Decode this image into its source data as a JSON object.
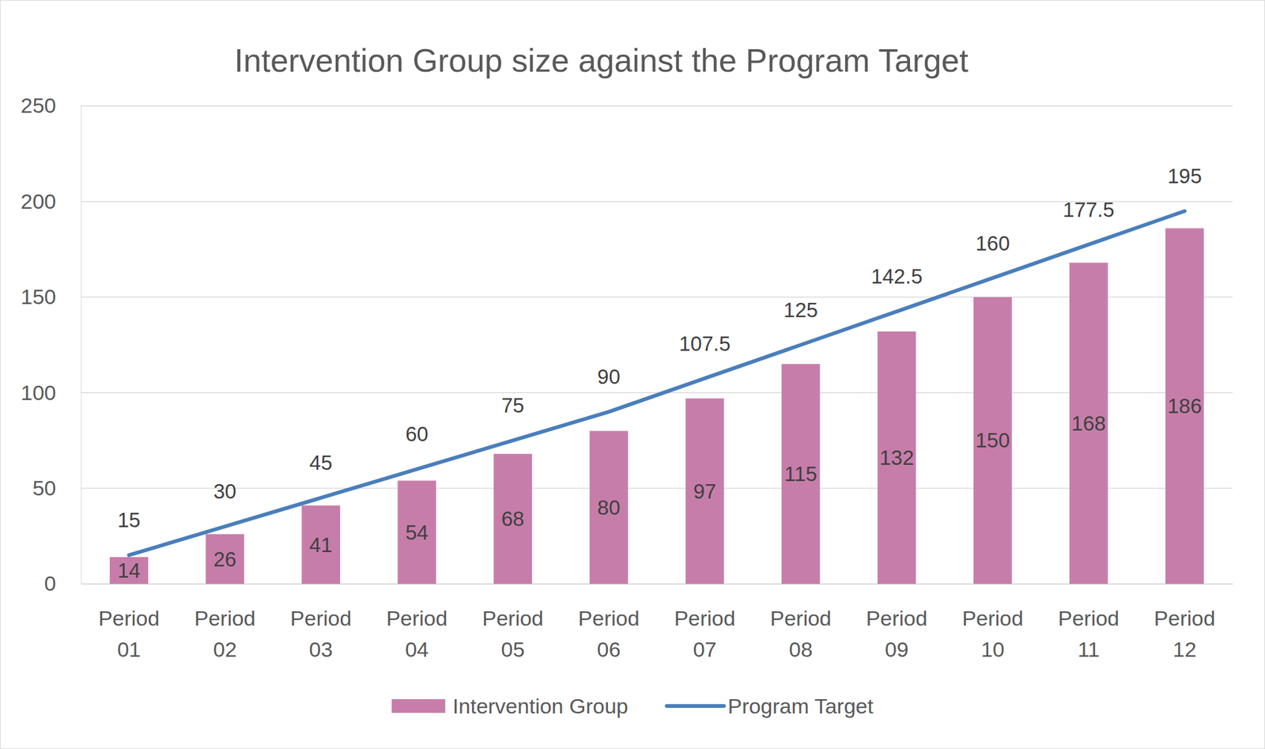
{
  "chart_data": {
    "type": "bar",
    "title": "Intervention Group size against the Program Target",
    "categories": [
      "Period 01",
      "Period 02",
      "Period 03",
      "Period 04",
      "Period 05",
      "Period 06",
      "Period 07",
      "Period 08",
      "Period 09",
      "Period 10",
      "Period 11",
      "Period 12"
    ],
    "series": [
      {
        "name": "Intervention Group",
        "type": "bar",
        "color": "#c77daa",
        "values": [
          14,
          26,
          41,
          54,
          68,
          80,
          97,
          115,
          132,
          150,
          168,
          186
        ]
      },
      {
        "name": "Program Target",
        "type": "line",
        "color": "#4a7ebb",
        "values": [
          15,
          30,
          45,
          60,
          75,
          90,
          107.5,
          125,
          142.5,
          160,
          177.5,
          195
        ]
      }
    ],
    "ylim": [
      0,
      250
    ],
    "yticks": [
      0,
      50,
      100,
      150,
      200,
      250
    ],
    "grid": true,
    "legend": "bottom",
    "data_labels": true
  }
}
